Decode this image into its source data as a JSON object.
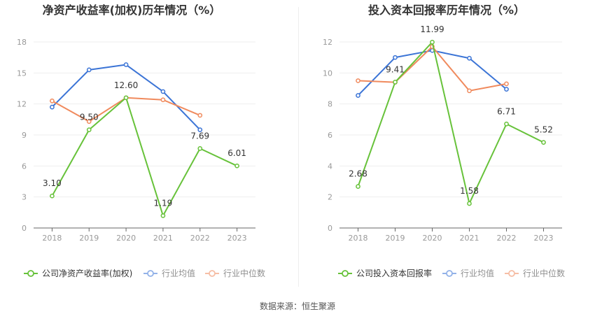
{
  "footer": {
    "source": "数据来源：恒生聚源"
  },
  "colors": {
    "company": "#67c23a",
    "avg": "#3b74d6",
    "median": "#f08a5d",
    "axis": "#999999",
    "grid": "#eeeeee"
  },
  "chart_data": [
    {
      "type": "line",
      "title": "净资产收益率(加权)历年情况（%）",
      "categories": [
        "2018",
        "2019",
        "2020",
        "2021",
        "2022",
        "2023"
      ],
      "ylim": [
        0,
        18
      ],
      "yticks": [
        0,
        3,
        6,
        9,
        12,
        15,
        18
      ],
      "grid": true,
      "legend_position": "bottom",
      "series": [
        {
          "name": "公司净资产收益率(加权)",
          "key": "company",
          "values": [
            3.1,
            9.5,
            12.6,
            1.19,
            7.69,
            6.01
          ],
          "labels": [
            "3.10",
            "9.50",
            "12.60",
            "1.19",
            "7.69",
            "6.01"
          ]
        },
        {
          "name": "行业均值",
          "key": "avg",
          "values": [
            11.7,
            15.3,
            15.8,
            13.2,
            9.5,
            null
          ]
        },
        {
          "name": "行业中位数",
          "key": "median",
          "values": [
            12.3,
            10.3,
            12.6,
            12.4,
            10.9,
            null
          ]
        }
      ]
    },
    {
      "type": "line",
      "title": "投入资本回报率历年情况（%）",
      "categories": [
        "2018",
        "2019",
        "2020",
        "2021",
        "2022",
        "2023"
      ],
      "ylim": [
        0,
        12
      ],
      "yticks": [
        0,
        2,
        4,
        6,
        8,
        10,
        12
      ],
      "grid": true,
      "legend_position": "bottom",
      "series": [
        {
          "name": "公司投入资本回报率",
          "key": "company",
          "values": [
            2.68,
            9.41,
            11.99,
            1.58,
            6.71,
            5.52
          ],
          "labels": [
            "2.68",
            "9.41",
            "11.99",
            "1.58",
            "6.71",
            "5.52"
          ]
        },
        {
          "name": "行业均值",
          "key": "avg",
          "values": [
            8.55,
            11.0,
            11.45,
            10.95,
            8.95,
            null
          ]
        },
        {
          "name": "行业中位数",
          "key": "median",
          "values": [
            9.5,
            9.4,
            11.7,
            8.85,
            9.3,
            null
          ]
        }
      ]
    }
  ]
}
